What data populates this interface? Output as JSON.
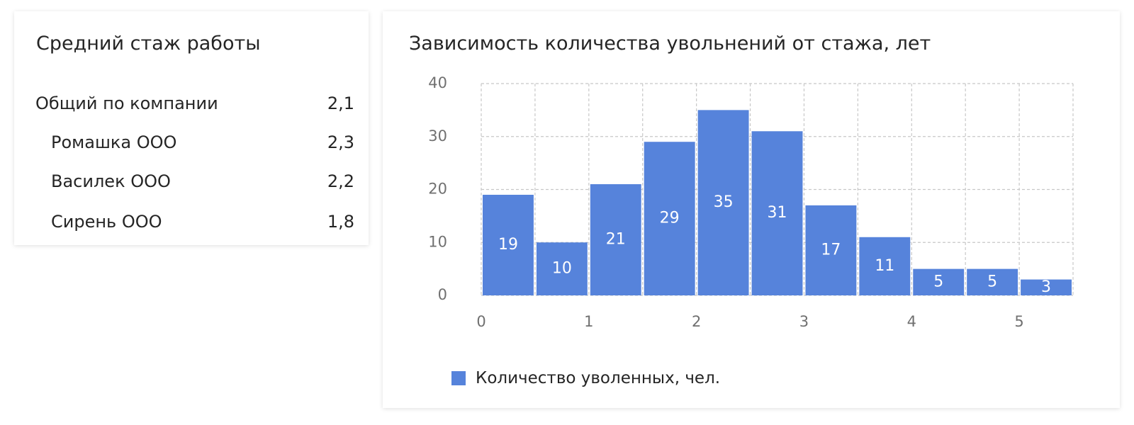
{
  "tenure_card": {
    "title": "Средний стаж работы",
    "rows": [
      {
        "name": "Общий по компании",
        "value": "2,1"
      },
      {
        "name": "Ромашка ООО",
        "value": "2,3"
      },
      {
        "name": "Василек ООО",
        "value": "2,2"
      },
      {
        "name": "Сирень ООО",
        "value": "1,8"
      }
    ]
  },
  "chart_card": {
    "title": "Зависимость количества увольнений от стажа, лет",
    "legend_label": "Количество уволенных, чел."
  },
  "colors": {
    "bar": "#5683db",
    "grid": "#c8c8c8",
    "tick_text": "#707070",
    "title_text": "#252525"
  },
  "chart_data": {
    "type": "bar",
    "title": "Зависимость количества увольнений от стажа, лет",
    "xlabel": "",
    "ylabel": "",
    "bin_width": 0.5,
    "x": [
      0,
      0.5,
      1,
      1.5,
      2,
      2.5,
      3,
      3.5,
      4,
      4.5,
      5
    ],
    "values": [
      19,
      10,
      21,
      29,
      35,
      31,
      17,
      11,
      5,
      5,
      3
    ],
    "series": [
      {
        "name": "Количество уволенных, чел.",
        "values": [
          19,
          10,
          21,
          29,
          35,
          31,
          17,
          11,
          5,
          5,
          3
        ]
      }
    ],
    "x_ticks": [
      "0",
      "1",
      "2",
      "3",
      "4",
      "5"
    ],
    "y_ticks": [
      "0",
      "10",
      "20",
      "30",
      "40"
    ],
    "xlim": [
      0,
      5.5
    ],
    "ylim": [
      0,
      40
    ],
    "grid": true,
    "data_labels": true,
    "legend_position": "bottom-left"
  }
}
